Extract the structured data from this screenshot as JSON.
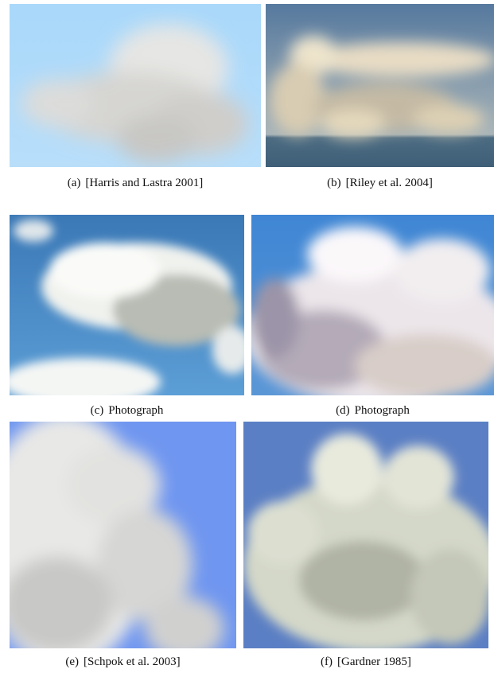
{
  "panels": [
    {
      "label": "(a)",
      "caption": "[Harris and Lastra 2001]"
    },
    {
      "label": "(b)",
      "caption": "[Riley et al. 2004]"
    },
    {
      "label": "(c)",
      "caption": "Photograph"
    },
    {
      "label": "(d)",
      "caption": "Photograph"
    },
    {
      "label": "(e)",
      "caption": "[Schpok et al. 2003]"
    },
    {
      "label": "(f)",
      "caption": "[Gardner 1985]"
    }
  ]
}
